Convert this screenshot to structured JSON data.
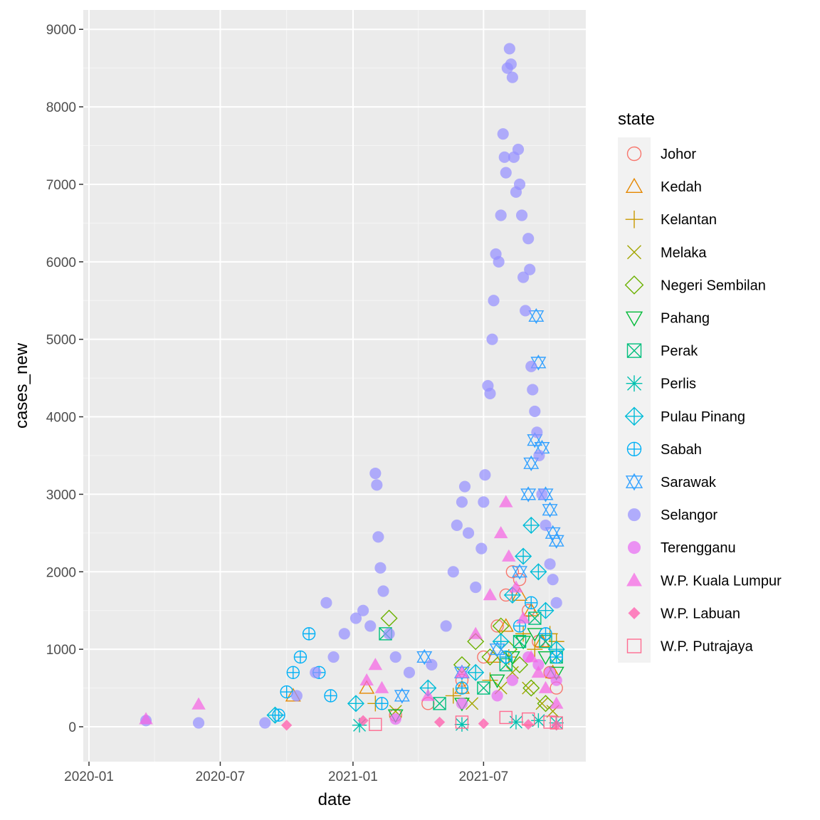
{
  "chart_data": {
    "type": "scatter",
    "title": "",
    "xlabel": "date",
    "ylabel": "cases_new",
    "legend_title": "state",
    "legend_position": "right",
    "grid": true,
    "x_range": [
      "2020-01-01",
      "2021-10-31"
    ],
    "ylim": [
      -450,
      9250
    ],
    "x_ticks": [
      {
        "date": "2020-01-01",
        "label": "2020-01"
      },
      {
        "date": "2020-07-01",
        "label": "2020-07"
      },
      {
        "date": "2021-01-01",
        "label": "2021-01"
      },
      {
        "date": "2021-07-01",
        "label": "2021-07"
      }
    ],
    "y_ticks": [
      0,
      1000,
      2000,
      3000,
      4000,
      5000,
      6000,
      7000,
      8000,
      9000
    ],
    "series": [
      {
        "name": "Johor",
        "shape": "circle-open",
        "color": "#F8766D",
        "points": [
          [
            "2021-03-01",
            150
          ],
          [
            "2021-04-15",
            300
          ],
          [
            "2021-06-01",
            600
          ],
          [
            "2021-07-01",
            900
          ],
          [
            "2021-07-20",
            1300
          ],
          [
            "2021-08-01",
            1700
          ],
          [
            "2021-08-10",
            2000
          ],
          [
            "2021-08-20",
            1900
          ],
          [
            "2021-09-01",
            1500
          ],
          [
            "2021-09-15",
            1100
          ],
          [
            "2021-10-01",
            700
          ],
          [
            "2021-10-10",
            500
          ]
        ]
      },
      {
        "name": "Kedah",
        "shape": "triangle-open",
        "color": "#E58700",
        "points": [
          [
            "2020-10-10",
            400
          ],
          [
            "2021-01-20",
            500
          ],
          [
            "2021-06-01",
            500
          ],
          [
            "2021-07-15",
            900
          ],
          [
            "2021-08-01",
            1300
          ],
          [
            "2021-08-20",
            1700
          ],
          [
            "2021-09-05",
            1500
          ],
          [
            "2021-09-20",
            1100
          ],
          [
            "2021-10-05",
            700
          ]
        ]
      },
      {
        "name": "Kelantan",
        "shape": "plus",
        "color": "#C99800",
        "points": [
          [
            "2021-02-01",
            300
          ],
          [
            "2021-05-20",
            400
          ],
          [
            "2021-07-10",
            600
          ],
          [
            "2021-08-05",
            900
          ],
          [
            "2021-08-25",
            1200
          ],
          [
            "2021-09-10",
            1000
          ],
          [
            "2021-10-01",
            1200
          ],
          [
            "2021-10-10",
            1100
          ]
        ]
      },
      {
        "name": "Melaka",
        "shape": "x",
        "color": "#A3A500",
        "points": [
          [
            "2021-03-01",
            200
          ],
          [
            "2021-06-15",
            300
          ],
          [
            "2021-07-25",
            500
          ],
          [
            "2021-08-10",
            700
          ],
          [
            "2021-09-01",
            500
          ],
          [
            "2021-09-20",
            300
          ],
          [
            "2021-10-05",
            200
          ]
        ]
      },
      {
        "name": "Negeri Sembilan",
        "shape": "diamond-open",
        "color": "#6BB100",
        "points": [
          [
            "2021-02-20",
            1400
          ],
          [
            "2021-06-01",
            800
          ],
          [
            "2021-06-20",
            1100
          ],
          [
            "2021-07-10",
            900
          ],
          [
            "2021-07-25",
            1300
          ],
          [
            "2021-08-05",
            1000
          ],
          [
            "2021-08-20",
            800
          ],
          [
            "2021-09-05",
            500
          ],
          [
            "2021-09-25",
            300
          ]
        ]
      },
      {
        "name": "Pahang",
        "shape": "triangle-down-open",
        "color": "#00BA38",
        "points": [
          [
            "2021-03-01",
            150
          ],
          [
            "2021-06-01",
            300
          ],
          [
            "2021-07-20",
            600
          ],
          [
            "2021-08-10",
            900
          ],
          [
            "2021-08-25",
            1100
          ],
          [
            "2021-09-10",
            1200
          ],
          [
            "2021-09-25",
            900
          ],
          [
            "2021-10-10",
            700
          ]
        ]
      },
      {
        "name": "Perak",
        "shape": "square-cross",
        "color": "#00BF7D",
        "points": [
          [
            "2021-02-15",
            1200
          ],
          [
            "2021-05-01",
            300
          ],
          [
            "2021-07-01",
            500
          ],
          [
            "2021-08-01",
            800
          ],
          [
            "2021-08-20",
            1100
          ],
          [
            "2021-09-10",
            1400
          ],
          [
            "2021-09-25",
            1100
          ],
          [
            "2021-10-10",
            900
          ]
        ]
      },
      {
        "name": "Perlis",
        "shape": "asterisk",
        "color": "#00C0AF",
        "points": [
          [
            "2021-01-10",
            20
          ],
          [
            "2021-06-01",
            30
          ],
          [
            "2021-08-15",
            60
          ],
          [
            "2021-09-15",
            80
          ],
          [
            "2021-10-10",
            50
          ]
        ]
      },
      {
        "name": "Pulau Pinang",
        "shape": "diamond-plus",
        "color": "#00BCD8",
        "points": [
          [
            "2020-09-15",
            150
          ],
          [
            "2021-01-05",
            300
          ],
          [
            "2021-04-15",
            500
          ],
          [
            "2021-06-20",
            700
          ],
          [
            "2021-07-25",
            1100
          ],
          [
            "2021-08-10",
            1700
          ],
          [
            "2021-08-25",
            2200
          ],
          [
            "2021-09-05",
            2600
          ],
          [
            "2021-09-15",
            2000
          ],
          [
            "2021-09-25",
            1500
          ],
          [
            "2021-10-10",
            1000
          ]
        ]
      },
      {
        "name": "Sabah",
        "shape": "circle-plus",
        "color": "#00B0F6",
        "points": [
          [
            "2020-09-20",
            150
          ],
          [
            "2020-10-01",
            450
          ],
          [
            "2020-10-10",
            700
          ],
          [
            "2020-10-20",
            900
          ],
          [
            "2020-11-01",
            1200
          ],
          [
            "2020-11-15",
            700
          ],
          [
            "2020-12-01",
            400
          ],
          [
            "2021-02-10",
            300
          ],
          [
            "2021-06-01",
            500
          ],
          [
            "2021-08-01",
            900
          ],
          [
            "2021-08-20",
            1300
          ],
          [
            "2021-09-05",
            1600
          ],
          [
            "2021-09-25",
            1200
          ],
          [
            "2021-10-10",
            900
          ]
        ]
      },
      {
        "name": "Sarawak",
        "shape": "star-of-david",
        "color": "#35A2FF",
        "points": [
          [
            "2021-03-10",
            400
          ],
          [
            "2021-04-10",
            900
          ],
          [
            "2021-06-01",
            700
          ],
          [
            "2021-07-20",
            1000
          ],
          [
            "2021-08-20",
            2000
          ],
          [
            "2021-09-01",
            3000
          ],
          [
            "2021-09-05",
            3400
          ],
          [
            "2021-09-10",
            3700
          ],
          [
            "2021-09-12",
            5300
          ],
          [
            "2021-09-15",
            4700
          ],
          [
            "2021-09-20",
            3600
          ],
          [
            "2021-09-25",
            3000
          ],
          [
            "2021-10-01",
            2800
          ],
          [
            "2021-10-05",
            2500
          ],
          [
            "2021-10-10",
            2400
          ]
        ]
      },
      {
        "name": "Selangor",
        "shape": "circle",
        "color": "#9590FF",
        "points": [
          [
            "2020-03-20",
            80
          ],
          [
            "2020-06-01",
            50
          ],
          [
            "2020-09-01",
            50
          ],
          [
            "2020-10-15",
            400
          ],
          [
            "2020-11-10",
            700
          ],
          [
            "2020-11-25",
            1600
          ],
          [
            "2020-12-05",
            900
          ],
          [
            "2020-12-20",
            1200
          ],
          [
            "2021-01-05",
            1400
          ],
          [
            "2021-01-15",
            1500
          ],
          [
            "2021-01-25",
            1300
          ],
          [
            "2021-02-01",
            3270
          ],
          [
            "2021-02-03",
            3120
          ],
          [
            "2021-02-05",
            2450
          ],
          [
            "2021-02-08",
            2050
          ],
          [
            "2021-02-12",
            1750
          ],
          [
            "2021-02-20",
            1200
          ],
          [
            "2021-03-01",
            900
          ],
          [
            "2021-03-20",
            700
          ],
          [
            "2021-04-20",
            800
          ],
          [
            "2021-05-10",
            1300
          ],
          [
            "2021-05-20",
            2000
          ],
          [
            "2021-05-25",
            2600
          ],
          [
            "2021-06-01",
            2900
          ],
          [
            "2021-06-05",
            3100
          ],
          [
            "2021-06-10",
            2500
          ],
          [
            "2021-06-20",
            1800
          ],
          [
            "2021-06-28",
            2300
          ],
          [
            "2021-07-01",
            2900
          ],
          [
            "2021-07-03",
            3250
          ],
          [
            "2021-07-07",
            4400
          ],
          [
            "2021-07-10",
            4300
          ],
          [
            "2021-07-13",
            5000
          ],
          [
            "2021-07-15",
            5500
          ],
          [
            "2021-07-18",
            6100
          ],
          [
            "2021-07-22",
            6000
          ],
          [
            "2021-07-25",
            6600
          ],
          [
            "2021-07-28",
            7650
          ],
          [
            "2021-07-30",
            7350
          ],
          [
            "2021-08-01",
            7150
          ],
          [
            "2021-08-03",
            8500
          ],
          [
            "2021-08-06",
            8750
          ],
          [
            "2021-08-08",
            8550
          ],
          [
            "2021-08-10",
            8380
          ],
          [
            "2021-08-12",
            7350
          ],
          [
            "2021-08-15",
            6900
          ],
          [
            "2021-08-18",
            7450
          ],
          [
            "2021-08-20",
            7000
          ],
          [
            "2021-08-23",
            6600
          ],
          [
            "2021-08-25",
            5800
          ],
          [
            "2021-08-28",
            5370
          ],
          [
            "2021-09-01",
            6300
          ],
          [
            "2021-09-03",
            5900
          ],
          [
            "2021-09-05",
            4650
          ],
          [
            "2021-09-07",
            4350
          ],
          [
            "2021-09-10",
            4070
          ],
          [
            "2021-09-13",
            3800
          ],
          [
            "2021-09-16",
            3500
          ],
          [
            "2021-09-20",
            3000
          ],
          [
            "2021-09-25",
            2600
          ],
          [
            "2021-10-01",
            2100
          ],
          [
            "2021-10-05",
            1900
          ],
          [
            "2021-10-10",
            1600
          ]
        ]
      },
      {
        "name": "Terengganu",
        "shape": "circle",
        "color": "#E76BF3",
        "points": [
          [
            "2021-03-01",
            100
          ],
          [
            "2021-06-01",
            300
          ],
          [
            "2021-07-20",
            400
          ],
          [
            "2021-08-10",
            600
          ],
          [
            "2021-09-01",
            900
          ],
          [
            "2021-09-15",
            800
          ],
          [
            "2021-10-01",
            700
          ],
          [
            "2021-10-10",
            600
          ]
        ]
      },
      {
        "name": "W.P. Kuala Lumpur",
        "shape": "triangle",
        "color": "#F564E3",
        "points": [
          [
            "2020-03-20",
            100
          ],
          [
            "2020-06-01",
            290
          ],
          [
            "2021-01-20",
            600
          ],
          [
            "2021-02-01",
            800
          ],
          [
            "2021-02-10",
            500
          ],
          [
            "2021-04-15",
            400
          ],
          [
            "2021-06-01",
            700
          ],
          [
            "2021-06-20",
            1200
          ],
          [
            "2021-07-10",
            1700
          ],
          [
            "2021-07-25",
            2500
          ],
          [
            "2021-08-01",
            2900
          ],
          [
            "2021-08-05",
            2200
          ],
          [
            "2021-08-15",
            1800
          ],
          [
            "2021-08-25",
            1400
          ],
          [
            "2021-09-05",
            900
          ],
          [
            "2021-09-15",
            700
          ],
          [
            "2021-09-25",
            500
          ],
          [
            "2021-10-10",
            300
          ]
        ]
      },
      {
        "name": "W.P. Labuan",
        "shape": "diamond",
        "color": "#FF64B0",
        "points": [
          [
            "2020-10-01",
            20
          ],
          [
            "2021-01-15",
            80
          ],
          [
            "2021-05-01",
            60
          ],
          [
            "2021-07-01",
            40
          ],
          [
            "2021-09-01",
            30
          ],
          [
            "2021-10-10",
            20
          ]
        ]
      },
      {
        "name": "W.P. Putrajaya",
        "shape": "square-open",
        "color": "#FF6C91",
        "points": [
          [
            "2021-02-01",
            30
          ],
          [
            "2021-06-01",
            60
          ],
          [
            "2021-08-01",
            120
          ],
          [
            "2021-09-01",
            100
          ],
          [
            "2021-10-01",
            60
          ],
          [
            "2021-10-10",
            50
          ]
        ]
      }
    ]
  }
}
